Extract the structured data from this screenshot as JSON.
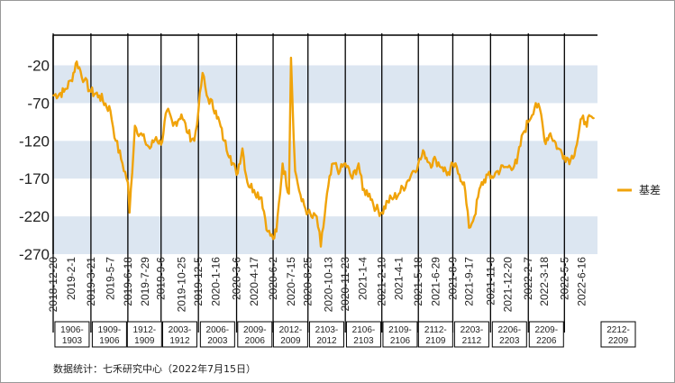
{
  "chart_data": {
    "type": "line",
    "title": "",
    "xlabel": "",
    "ylabel": "",
    "ylim": [
      -270,
      20
    ],
    "yticks": [
      -20,
      -70,
      -120,
      -170,
      -220,
      -270
    ],
    "shaded_bands": [
      [
        -70,
        -20
      ],
      [
        -170,
        -120
      ],
      [
        -270,
        -220
      ]
    ],
    "grid": false,
    "legend_position": "right",
    "series": [
      {
        "name": "基差",
        "color": "#F0A30A",
        "x": [
          "2018-12-20",
          "2019-01-15",
          "2019-02-01",
          "2019-02-15",
          "2019-03-05",
          "2019-03-21",
          "2019-04-10",
          "2019-05-07",
          "2019-05-20",
          "2019-06-05",
          "2019-06-18",
          "2019-06-22",
          "2019-07-05",
          "2019-07-29",
          "2019-08-10",
          "2019-08-25",
          "2019-09-06",
          "2019-09-20",
          "2019-10-05",
          "2019-10-25",
          "2019-11-10",
          "2019-11-25",
          "2019-12-05",
          "2019-12-15",
          "2019-12-25",
          "2020-01-16",
          "2020-02-05",
          "2020-02-20",
          "2020-03-06",
          "2020-03-20",
          "2020-04-01",
          "2020-04-17",
          "2020-05-05",
          "2020-05-20",
          "2020-06-02",
          "2020-06-10",
          "2020-06-25",
          "2020-07-10",
          "2020-07-15",
          "2020-07-25",
          "2020-08-10",
          "2020-08-25",
          "2020-09-05",
          "2020-09-15",
          "2020-09-25",
          "2020-10-13",
          "2020-10-25",
          "2020-11-10",
          "2020-11-23",
          "2020-12-10",
          "2020-12-25",
          "2021-01-04",
          "2021-01-20",
          "2021-02-05",
          "2021-02-19",
          "2021-03-05",
          "2021-03-20",
          "2021-04-01",
          "2021-04-20",
          "2021-05-05",
          "2021-05-18",
          "2021-06-01",
          "2021-06-15",
          "2021-06-29",
          "2021-07-15",
          "2021-08-01",
          "2021-08-09",
          "2021-08-25",
          "2021-09-05",
          "2021-09-17",
          "2021-09-30",
          "2021-10-15",
          "2021-11-01",
          "2021-11-08",
          "2021-11-25",
          "2021-12-10",
          "2021-12-20",
          "2022-01-10",
          "2022-01-25",
          "2022-02-07",
          "2022-02-25",
          "2022-03-10",
          "2022-03-18",
          "2022-04-01",
          "2022-04-20",
          "2022-05-05",
          "2022-05-20",
          "2022-06-01",
          "2022-06-16",
          "2022-06-25",
          "2022-07-15"
        ],
        "values": [
          -60,
          -55,
          -40,
          -15,
          -40,
          -55,
          -60,
          -80,
          -120,
          -150,
          -175,
          -215,
          -100,
          -120,
          -130,
          -115,
          -125,
          -80,
          -100,
          -85,
          -110,
          -120,
          -80,
          -30,
          -60,
          -80,
          -120,
          -140,
          -165,
          -130,
          -175,
          -185,
          -195,
          -240,
          -250,
          -240,
          -150,
          -190,
          -10,
          -160,
          -200,
          -215,
          -222,
          -220,
          -260,
          -180,
          -150,
          -160,
          -150,
          -170,
          -150,
          -185,
          -190,
          -210,
          -215,
          -200,
          -195,
          -190,
          -175,
          -160,
          -150,
          -135,
          -150,
          -145,
          -155,
          -165,
          -150,
          -165,
          -175,
          -235,
          -220,
          -180,
          -165,
          -170,
          -160,
          -155,
          -155,
          -150,
          -110,
          -95,
          -70,
          -85,
          -120,
          -110,
          -130,
          -140,
          -145,
          -130,
          -90,
          -95,
          -90
        ]
      }
    ],
    "x_tick_labels": [
      "2018-12-20",
      "2019-2-1",
      "2019-3-21",
      "2019-5-7",
      "2019-6-18",
      "2019-7-29",
      "2019-9-6",
      "2019-10-25",
      "2019-12-5",
      "2020-1-16",
      "2020-3-6",
      "2020-4-17",
      "2020-6-2",
      "2020-7-15",
      "2020-8-25",
      "2020-10-13",
      "2020-11-23",
      "2021-1-4",
      "2021-2-19",
      "2021-4-1",
      "2021-5-18",
      "2021-6-29",
      "2021-8-9",
      "2021-9-17",
      "2021-11-8",
      "2021-12-20",
      "2022-2-7",
      "2022-3-18",
      "2022-5-5",
      "2022-6-16"
    ],
    "contract_labels": [
      [
        "1906-",
        "1903"
      ],
      [
        "1909-",
        "1906"
      ],
      [
        "1912-",
        "1909"
      ],
      [
        "2003-",
        "1912"
      ],
      [
        "2006-",
        "2003"
      ],
      [
        "2009-",
        "2006"
      ],
      [
        "2012-",
        "2009"
      ],
      [
        "2103-",
        "2012"
      ],
      [
        "2106-",
        "2103"
      ],
      [
        "2109-",
        "2106"
      ],
      [
        "2112-",
        "2109"
      ],
      [
        "2203-",
        "2112"
      ],
      [
        "2206-",
        "2203"
      ],
      [
        "2209-",
        "2206"
      ],
      [
        "2212-",
        "2209"
      ]
    ],
    "source_note": "数据统计：七禾研究中心（2022年7月15日）"
  }
}
